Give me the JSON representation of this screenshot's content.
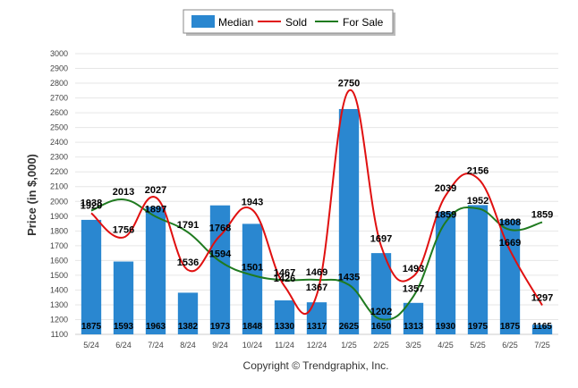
{
  "chart_data": {
    "type": "bar",
    "categories": [
      "5/24",
      "6/24",
      "7/24",
      "8/24",
      "9/24",
      "10/24",
      "11/24",
      "12/24",
      "1/25",
      "2/25",
      "3/25",
      "4/25",
      "5/25",
      "6/25",
      "7/25"
    ],
    "ylabel": "Price (in $,000)",
    "ylim": [
      1100,
      3000
    ],
    "yticks": [
      1100,
      1200,
      1300,
      1400,
      1500,
      1600,
      1700,
      1800,
      1900,
      2000,
      2100,
      2200,
      2300,
      2400,
      2500,
      2600,
      2700,
      2800,
      2900,
      3000
    ],
    "grid": true,
    "legend_position": "top-center",
    "series": [
      {
        "name": "Median",
        "type": "bar",
        "color": "#2a87d0",
        "values": [
          1875,
          1593,
          1963,
          1382,
          1973,
          1848,
          1330,
          1317,
          2625,
          1650,
          1313,
          1930,
          1975,
          1875,
          1165
        ]
      },
      {
        "name": "Sold",
        "type": "line",
        "color": "#e01010",
        "values": [
          1920,
          1756,
          2027,
          1536,
          1768,
          1943,
          1426,
          1367,
          2750,
          1697,
          1493,
          2039,
          2156,
          1669,
          1297
        ]
      },
      {
        "name": "For Sale",
        "type": "line",
        "color": "#1f7a1f",
        "values": [
          1938,
          2013,
          1897,
          1791,
          1594,
          1501,
          1467,
          1469,
          1435,
          1202,
          1357,
          1859,
          1952,
          1808,
          1859
        ]
      }
    ]
  },
  "credit": "Copyright © Trendgraphix, Inc."
}
